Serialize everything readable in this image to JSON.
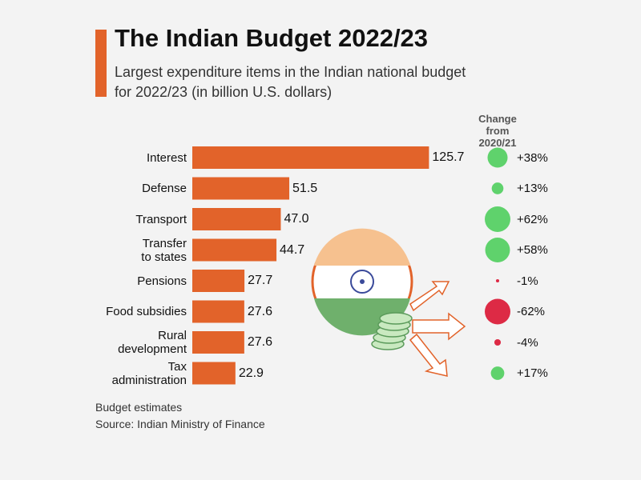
{
  "chart_data": {
    "type": "bar",
    "title": "The Indian Budget 2022/23",
    "subtitle": "Largest expenditure items in the Indian national budget for 2022/23 (in billion U.S. dollars)",
    "categories": [
      "Interest",
      "Defense",
      "Transport",
      "Transfer\nto states",
      "Pensions",
      "Food subsidies",
      "Rural\ndevelopment",
      "Tax\nadministration"
    ],
    "values": [
      125.7,
      51.5,
      47.0,
      44.7,
      27.7,
      27.6,
      27.6,
      22.9
    ],
    "value_labels": [
      "125.7",
      "51.5",
      "47.0",
      "44.7",
      "27.7",
      "27.6",
      "27.6",
      "22.9"
    ],
    "color": "#e2632a",
    "change": {
      "name": "Change from\n2020/21",
      "values": [
        38,
        13,
        62,
        58,
        -1,
        -62,
        -4,
        17
      ],
      "value_labels": [
        "+38%",
        "+13%",
        "+62%",
        "+58%",
        "-1%",
        "-62%",
        "-4%",
        "+17%"
      ],
      "positive_color": "#5fd26c",
      "negative_color": "#dd2a45"
    },
    "notes": [
      "Budget estimates",
      "Source: Indian Ministry of Finance"
    ]
  }
}
